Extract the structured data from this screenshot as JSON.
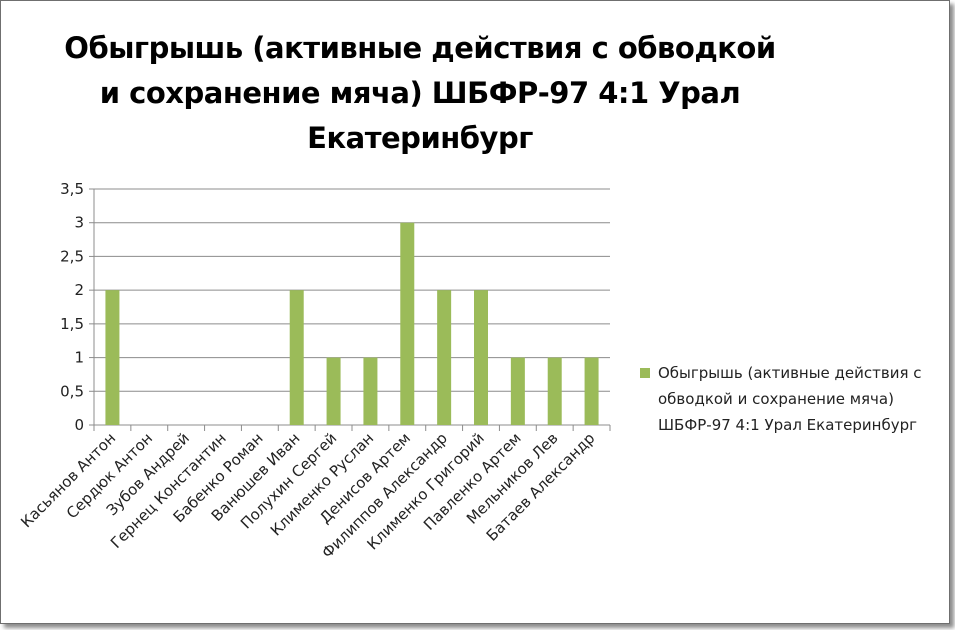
{
  "chart_data": {
    "type": "bar",
    "title": "Обыгрышь (активные действия с обводкой и сохранение мяча) ШБФР-97  4:1  Урал Екатеринбург",
    "categories": [
      "Касьянов Антон",
      "Сердюк Антон",
      "Зубов Андрей",
      "Гернец Константин",
      "Бабенко Роман",
      "Ванюшев Иван",
      "Полухин Сергей",
      "Клименко Руслан",
      "Денисов Артем",
      "Филиппов Александр",
      "Клименко Григорий",
      "Павленко Артем",
      "Мельников Лев",
      "Батаев Александр"
    ],
    "series": [
      {
        "name": "Обыгрышь (активные действия с обводкой и сохранение мяча) ШБФР-97  4:1  Урал Екатеринбург",
        "values": [
          2,
          0,
          0,
          0,
          0,
          2,
          1,
          1,
          3,
          2,
          2,
          1,
          1,
          1
        ]
      }
    ],
    "yticks": [
      "0",
      "0,5",
      "1",
      "1,5",
      "2",
      "2,5",
      "3",
      "3,5"
    ],
    "ylim": [
      0,
      3.5
    ],
    "grid": true,
    "legend_position": "right",
    "bar_color": "#9bbb59"
  }
}
